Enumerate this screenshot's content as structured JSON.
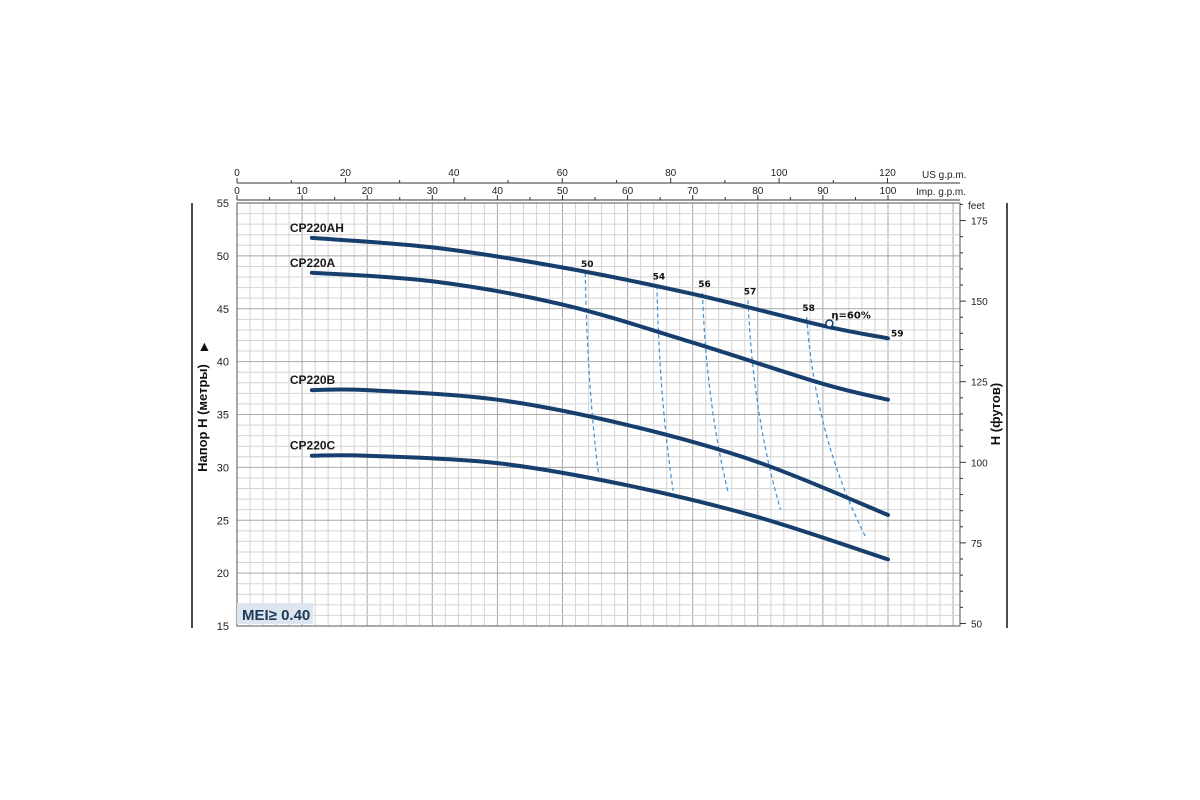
{
  "chart_data": {
    "type": "line",
    "x_axis_top": {
      "unit_label": "US g.p.m.",
      "ticks": [
        "0",
        "20",
        "40",
        "60",
        "80",
        "100",
        "120"
      ],
      "range": [
        0,
        120
      ]
    },
    "x_axis_bottom": {
      "unit_label": "Imp. g.p.m.",
      "ticks": [
        "0",
        "10",
        "20",
        "30",
        "40",
        "50",
        "60",
        "70",
        "80",
        "90",
        "100"
      ],
      "range": [
        0,
        100
      ]
    },
    "y_left": {
      "label": "Напор H (метры)",
      "ticks": [
        "15",
        "20",
        "25",
        "30",
        "35",
        "40",
        "45",
        "50",
        "55"
      ],
      "range": [
        15,
        55
      ]
    },
    "y_right": {
      "label": "H (футов)",
      "unit_label": "feet",
      "ticks": [
        "50",
        "75",
        "100",
        "125",
        "150",
        "175"
      ]
    },
    "series": [
      {
        "name": "CP220AH",
        "x": [
          11.5,
          30,
          50,
          70,
          90,
          100
        ],
        "y": [
          51.7,
          50.8,
          48.9,
          46.4,
          43.4,
          42.2
        ]
      },
      {
        "name": "CP220A",
        "x": [
          11.5,
          30,
          50,
          70,
          90,
          100
        ],
        "y": [
          48.4,
          47.6,
          45.4,
          41.8,
          37.9,
          36.4
        ]
      },
      {
        "name": "CP220B",
        "x": [
          11.5,
          20,
          40,
          60,
          80,
          100
        ],
        "y": [
          37.3,
          37.3,
          36.4,
          34.0,
          30.5,
          25.5
        ]
      },
      {
        "name": "CP220C",
        "x": [
          11.5,
          20,
          40,
          60,
          80,
          100
        ],
        "y": [
          31.1,
          31.1,
          30.4,
          28.3,
          25.3,
          21.3
        ]
      }
    ],
    "efficiency": [
      {
        "label": "50",
        "points": [
          [
            53.5,
            48.4
          ],
          [
            55.5,
            29.5
          ]
        ]
      },
      {
        "label": "54",
        "points": [
          [
            64.5,
            47.2
          ],
          [
            67,
            27.8
          ]
        ]
      },
      {
        "label": "56",
        "points": [
          [
            71.5,
            46.5
          ],
          [
            75.5,
            27.5
          ]
        ]
      },
      {
        "label": "57",
        "points": [
          [
            78.5,
            45.8
          ],
          [
            83.5,
            26.0
          ]
        ]
      },
      {
        "label": "58",
        "points": [
          [
            87.5,
            44.2
          ],
          [
            96.5,
            23.5
          ]
        ]
      }
    ],
    "eta_label": "η=60%",
    "eta_point": [
      91,
      43.6
    ],
    "end_label": "59"
  },
  "mei_label": "MEI≥ 0.40",
  "colors": {
    "curve": "#173f6e",
    "eff": "#3f8fd6",
    "grid": "#c8c8c8"
  }
}
